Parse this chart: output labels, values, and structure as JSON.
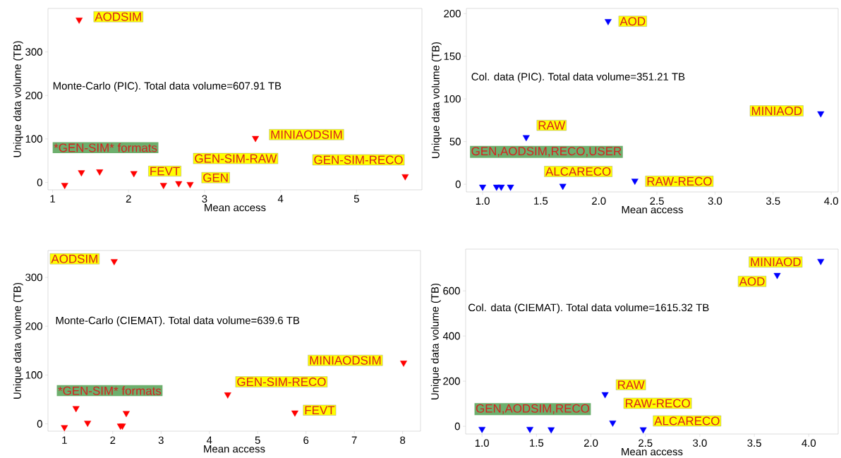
{
  "chart_data": [
    {
      "type": "scatter",
      "xlabel": "Mean access",
      "ylabel": "Unique data volume (TB)",
      "color": "#ff0000",
      "marker": "triangle",
      "x": [
        1.35,
        1.16,
        1.38,
        1.62,
        2.07,
        2.46,
        2.66,
        2.81,
        3.67,
        5.64
      ],
      "values": [
        374,
        -6,
        23,
        25,
        21,
        -6,
        -2,
        -4,
        102,
        14
      ],
      "xlim": [
        0.94,
        5.86
      ],
      "ylim": [
        -17,
        400
      ],
      "xticks": [
        1,
        2,
        3,
        4,
        5
      ],
      "yticks": [
        0,
        100,
        200,
        300
      ],
      "annotations": [
        "Monte-Carlo (PIC). Total data volume=607.91 TB",
        "*GEN-SIM* formats",
        "AODSIM",
        "FEVT",
        "GEN-SIM-RAW",
        "GEN",
        "MINIAODSIM",
        "GEN-SIM-RECO"
      ]
    },
    {
      "type": "scatter",
      "xlabel": "Mean access",
      "ylabel": "Unique data volume (TB)",
      "color": "#0000ff",
      "marker": "triangle",
      "x": [
        2.08,
        3.91,
        1.375,
        1.69,
        2.31,
        1.0,
        1.12,
        1.16,
        1.24
      ],
      "values": [
        191,
        83,
        55,
        -2,
        4,
        -3,
        -3,
        -3,
        -3
      ],
      "xlim": [
        0.86,
        4.06
      ],
      "ylim": [
        -9,
        206
      ],
      "xticks": [
        {
          "value": 1,
          "label": "1.0"
        },
        {
          "value": 1.5,
          "label": "1.5"
        },
        {
          "value": 2,
          "label": "2.0"
        },
        {
          "value": 2.5,
          "label": "2.5"
        },
        {
          "value": 3,
          "label": "3.0"
        },
        {
          "value": 3.5,
          "label": "3.5"
        },
        {
          "value": 4,
          "label": "4.0"
        }
      ],
      "yticks": [
        0,
        50,
        100,
        150,
        200
      ],
      "annotations": [
        "Col. data (PIC). Total data volume=351.21 TB",
        "GEN,AODSIM,RECO,USER",
        "AOD",
        "MINIAOD",
        "RAW",
        "ALCARECO",
        "RAW-RECO"
      ]
    },
    {
      "type": "scatter",
      "xlabel": "Mean access",
      "ylabel": "Unique data volume (TB)",
      "color": "#ff0000",
      "marker": "triangle",
      "x": [
        2.03,
        1.0,
        1.24,
        1.48,
        2.16,
        2.2,
        2.28,
        4.38,
        5.77,
        8.02
      ],
      "values": [
        333,
        -7,
        32,
        2,
        -4,
        -4,
        22,
        60,
        23,
        125
      ],
      "xlim": [
        0.66,
        8.37
      ],
      "ylim": [
        -15,
        355
      ],
      "xticks": [
        1,
        2,
        3,
        4,
        5,
        6,
        7,
        8
      ],
      "yticks": [
        0,
        100,
        200,
        300
      ],
      "annotations": [
        "Monte-Carlo (CIEMAT). Total data volume=639.6 TB",
        "*GEN-SIM* formats",
        "AODSIM",
        "MINIAODSIM",
        "GEN-SIM-RECO",
        "FEVT"
      ]
    },
    {
      "type": "scatter",
      "xlabel": "Mean access",
      "ylabel": "Unique data volume (TB)",
      "color": "#0000ff",
      "marker": "triangle",
      "x": [
        1.0,
        1.44,
        1.635,
        2.13,
        2.2,
        2.48,
        3.71,
        4.11
      ],
      "values": [
        -12,
        -12,
        -14,
        142,
        16,
        -14,
        670,
        732
      ],
      "xlim": [
        0.85,
        4.27
      ],
      "ylim": [
        -34,
        785
      ],
      "xticks": [
        {
          "value": 1,
          "label": "1.0"
        },
        {
          "value": 1.5,
          "label": "1.5"
        },
        {
          "value": 2,
          "label": "2.0"
        },
        {
          "value": 2.5,
          "label": "2.5"
        },
        {
          "value": 3,
          "label": "3.0"
        },
        {
          "value": 3.5,
          "label": "3.5"
        },
        {
          "value": 4,
          "label": "4.0"
        }
      ],
      "yticks": [
        0,
        200,
        400,
        600
      ],
      "annotations": [
        "Col. data (CIEMAT). Total data volume=1615.32 TB",
        "GEN,AODSIM,RECO",
        "RAW",
        "RAW-RECO",
        "ALCARECO",
        "MINIAOD",
        "AOD"
      ]
    }
  ]
}
